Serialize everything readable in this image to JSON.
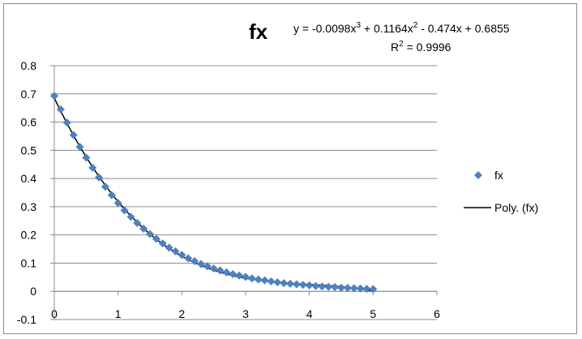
{
  "chart_data": {
    "type": "scatter",
    "title": "fx",
    "trendline_equation": {
      "lead": "y = -0.0098x",
      "exp1": "3",
      "mid": " + 0.1164x",
      "exp2": "2",
      "tail": " - 0.474x + 0.6855"
    },
    "r_squared": {
      "lead": "R",
      "exp": "2",
      "tail": " = 0.9996"
    },
    "xlim": [
      0,
      6
    ],
    "ylim": [
      -0.1,
      0.8
    ],
    "x_ticks": [
      "0",
      "1",
      "2",
      "3",
      "4",
      "5",
      "6"
    ],
    "y_ticks": [
      "-0.1",
      "0",
      "0.1",
      "0.2",
      "0.3",
      "0.4",
      "0.5",
      "0.6",
      "0.7",
      "0.8"
    ],
    "grid": "horizontal",
    "legend": {
      "position": "right",
      "entries": [
        "fx",
        "Poly. (fx)"
      ]
    },
    "series": [
      {
        "name": "fx",
        "kind": "markers",
        "marker": "diamond",
        "color": "#4f81bd",
        "x": [
          0,
          0.1,
          0.2,
          0.3,
          0.4,
          0.5,
          0.6,
          0.7,
          0.8,
          0.9,
          1.0,
          1.1,
          1.2,
          1.3,
          1.4,
          1.5,
          1.6,
          1.7,
          1.8,
          1.9,
          2.0,
          2.1,
          2.2,
          2.3,
          2.4,
          2.5,
          2.6,
          2.7,
          2.8,
          2.9,
          3.0,
          3.1,
          3.2,
          3.3,
          3.4,
          3.5,
          3.6,
          3.7,
          3.8,
          3.9,
          4.0,
          4.1,
          4.2,
          4.3,
          4.4,
          4.5,
          4.6,
          4.7,
          4.8,
          4.9,
          5.0
        ],
        "y": [
          0.693,
          0.645,
          0.598,
          0.554,
          0.512,
          0.474,
          0.438,
          0.404,
          0.371,
          0.341,
          0.313,
          0.287,
          0.264,
          0.242,
          0.222,
          0.203,
          0.186,
          0.17,
          0.155,
          0.142,
          0.129,
          0.117,
          0.107,
          0.097,
          0.089,
          0.081,
          0.074,
          0.067,
          0.061,
          0.056,
          0.051,
          0.046,
          0.042,
          0.039,
          0.035,
          0.032,
          0.029,
          0.027,
          0.025,
          0.023,
          0.021,
          0.019,
          0.017,
          0.016,
          0.015,
          0.013,
          0.012,
          0.011,
          0.01,
          0.009,
          0.008
        ]
      },
      {
        "name": "Poly. (fx)",
        "kind": "trendline",
        "color": "#000000",
        "coefficients": [
          -0.0098,
          0.1164,
          -0.474,
          0.6855
        ],
        "x_range": [
          0,
          5
        ]
      }
    ]
  }
}
